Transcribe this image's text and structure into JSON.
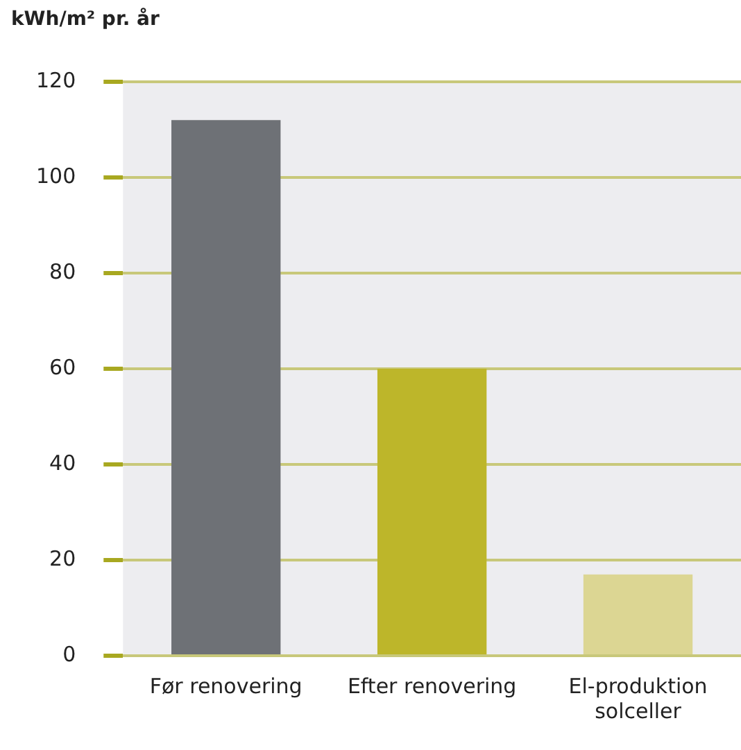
{
  "chart_data": {
    "type": "bar",
    "ylabel": "kWh/m² pr. år",
    "categories": [
      "Før renovering",
      "Efter renovering",
      "El-produktion\nsolceller"
    ],
    "values": [
      112,
      60,
      17
    ],
    "colors": [
      "#6e7176",
      "#bdb62a",
      "#dcd693"
    ],
    "ylim": [
      0,
      120
    ],
    "yticks": [
      0,
      20,
      40,
      60,
      80,
      100,
      120
    ],
    "grid": "y"
  }
}
